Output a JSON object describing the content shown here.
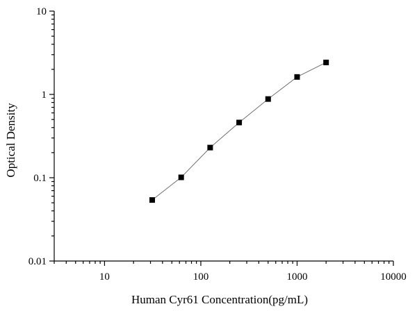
{
  "chart_data": {
    "type": "line",
    "title": "",
    "xlabel": "Human Cyr61 Concentration(pg/mL)",
    "ylabel": "Optical Density",
    "xscale": "log",
    "yscale": "log",
    "xlim": [
      3,
      10000
    ],
    "ylim": [
      0.01,
      10
    ],
    "xticks": [
      10,
      100,
      1000,
      10000
    ],
    "xtick_labels": [
      "10",
      "100",
      "1000",
      "10000"
    ],
    "yticks": [
      0.01,
      0.1,
      1,
      10
    ],
    "ytick_labels": [
      "0.01",
      "0.1",
      "1",
      "10"
    ],
    "grid": false,
    "legend": "none",
    "series": [
      {
        "x": [
          31.25,
          62.5,
          125,
          250,
          500,
          1000,
          2000
        ],
        "y": [
          0.054,
          0.101,
          0.23,
          0.46,
          0.88,
          1.62,
          2.42
        ],
        "marker": "square",
        "color": "#000000",
        "line_color": "#6f6f6f"
      }
    ]
  }
}
